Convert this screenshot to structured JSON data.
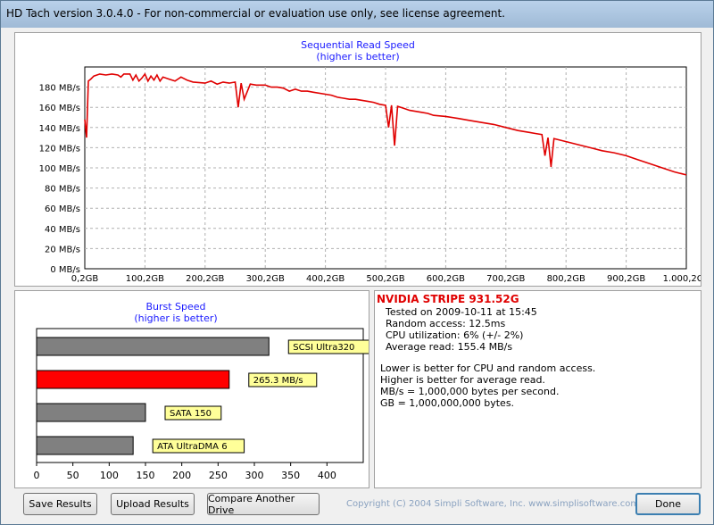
{
  "window": {
    "title": "HD Tach version 3.0.4.0  - For non-commercial or evaluation use only, see license agreement."
  },
  "read_chart": {
    "title": "Sequential Read Speed",
    "subtitle": "(higher is better)",
    "line_color": "#e00000"
  },
  "burst_chart": {
    "title": "Burst Speed",
    "subtitle": "(higher is better)"
  },
  "chart_data": [
    {
      "type": "line",
      "title": "Sequential Read Speed",
      "subtitle": "(higher is better)",
      "x_unit": "GB",
      "y_unit": "MB/s",
      "xlim": [
        0,
        1000
      ],
      "ylim": [
        0,
        200
      ],
      "x_ticks": [
        0,
        100,
        200,
        300,
        400,
        500,
        600,
        700,
        800,
        900,
        1000
      ],
      "x_tick_labels": [
        "0,2GB",
        "100,2GB",
        "200,2GB",
        "300,2GB",
        "400,2GB",
        "500,2GB",
        "600,2GB",
        "700,2GB",
        "800,2GB",
        "900,2GB",
        "1.000,2GB"
      ],
      "y_ticks": [
        0,
        20,
        40,
        60,
        80,
        100,
        120,
        140,
        160,
        180
      ],
      "y_tick_labels": [
        "0 MB/s",
        "20 MB/s",
        "40 MB/s",
        "60 MB/s",
        "80 MB/s",
        "100 MB/s",
        "120 MB/s",
        "140 MB/s",
        "160 MB/s",
        "180 MB/s"
      ],
      "grid": true,
      "series": [
        {
          "color": "#e00000",
          "x": [
            0,
            3,
            6,
            10,
            15,
            25,
            35,
            45,
            55,
            60,
            65,
            75,
            80,
            85,
            90,
            95,
            100,
            105,
            110,
            115,
            120,
            125,
            130,
            140,
            150,
            160,
            170,
            180,
            200,
            210,
            220,
            230,
            240,
            250,
            255,
            260,
            265,
            275,
            285,
            300,
            310,
            320,
            330,
            340,
            350,
            360,
            370,
            380,
            400,
            410,
            420,
            430,
            440,
            450,
            460,
            470,
            480,
            490,
            500,
            505,
            510,
            515,
            520,
            530,
            540,
            550,
            560,
            570,
            580,
            600,
            620,
            640,
            660,
            680,
            700,
            720,
            740,
            750,
            760,
            765,
            770,
            775,
            780,
            800,
            820,
            840,
            860,
            880,
            900,
            920,
            940,
            960,
            980,
            1000
          ],
          "y": [
            148,
            130,
            186,
            188,
            191,
            193,
            192,
            193,
            192,
            190,
            193,
            193,
            187,
            192,
            186,
            189,
            193,
            186,
            191,
            187,
            192,
            186,
            190,
            188,
            186,
            190,
            187,
            185,
            184,
            186,
            183,
            185,
            184,
            185,
            160,
            184,
            168,
            183,
            182,
            182,
            180,
            180,
            179,
            176,
            178,
            176,
            176,
            175,
            173,
            172,
            170,
            169,
            168,
            168,
            167,
            166,
            165,
            163,
            162,
            140,
            162,
            122,
            161,
            159,
            157,
            156,
            155,
            154,
            152,
            151,
            149,
            147,
            145,
            143,
            140,
            137,
            135,
            134,
            133,
            112,
            130,
            101,
            129,
            126,
            123,
            120,
            117,
            115,
            112,
            108,
            104,
            100,
            96,
            93
          ]
        }
      ]
    },
    {
      "type": "bar",
      "title": "Burst Speed",
      "subtitle": "(higher is better)",
      "orientation": "horizontal",
      "xlim": [
        0,
        450
      ],
      "x_ticks": [
        0,
        50,
        100,
        150,
        200,
        250,
        300,
        350,
        400
      ],
      "x_tick_labels": [
        "0",
        "50",
        "100",
        "150",
        "200",
        "250",
        "300",
        "350",
        "400"
      ],
      "categories": [
        "SCSI Ultra320",
        "265.3 MB/s",
        "SATA 150",
        "ATA UltraDMA 6"
      ],
      "values": [
        320,
        265.3,
        150,
        133
      ],
      "colors": [
        "#808080",
        "#ff0000",
        "#808080",
        "#808080"
      ]
    }
  ],
  "info": {
    "drive_name": "NVIDIA STRIPE 931.52G",
    "lines": [
      "Tested on 2009-10-11 at 15:45",
      "Random access: 12.5ms",
      "CPU utilization: 6% (+/- 2%)",
      "Average read: 155.4 MB/s"
    ],
    "notes": [
      "Lower is better for CPU and random access.",
      "Higher is better for average read.",
      "MB/s = 1,000,000 bytes per second.",
      "GB = 1,000,000,000 bytes."
    ]
  },
  "buttons": {
    "save": "Save Results",
    "upload": "Upload Results",
    "compare": "Compare Another Drive",
    "done": "Done"
  },
  "copyright": "Copyright (C) 2004 Simpli Software, Inc. www.simplisoftware.com"
}
